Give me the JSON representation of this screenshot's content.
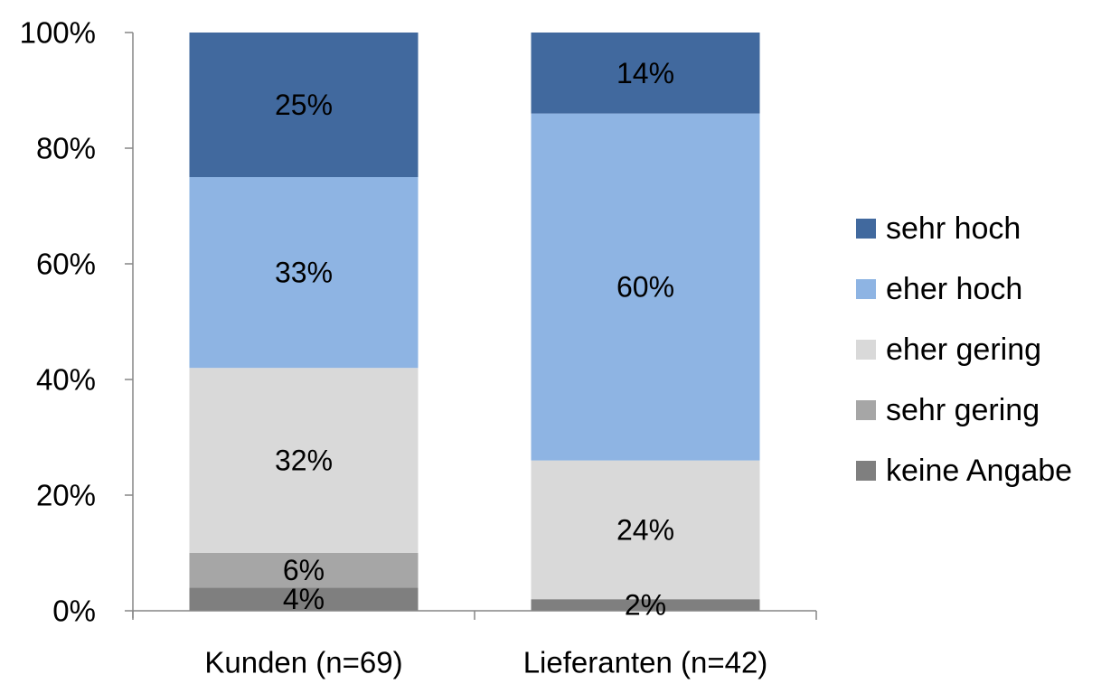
{
  "chart_data": {
    "type": "bar",
    "stacked": true,
    "categories": [
      "Kunden (n=69)",
      "Lieferanten (n=42)"
    ],
    "series": [
      {
        "name": "keine Angabe",
        "values": [
          4,
          2
        ],
        "labels": [
          "4%",
          "2%"
        ],
        "color": "#7f7f7f"
      },
      {
        "name": "sehr gering",
        "values": [
          6,
          0
        ],
        "labels": [
          "6%",
          ""
        ],
        "color": "#a6a6a6"
      },
      {
        "name": "eher gering",
        "values": [
          32,
          24
        ],
        "labels": [
          "32%",
          "24%"
        ],
        "color": "#d9d9d9"
      },
      {
        "name": "eher hoch",
        "values": [
          33,
          60
        ],
        "labels": [
          "33%",
          "60%"
        ],
        "color": "#8eb4e3"
      },
      {
        "name": "sehr hoch",
        "values": [
          25,
          14
        ],
        "labels": [
          "25%",
          "14%"
        ],
        "color": "#41699e"
      }
    ],
    "y_ticks": [
      {
        "value": 0,
        "label": "0%"
      },
      {
        "value": 20,
        "label": "20%"
      },
      {
        "value": 40,
        "label": "40%"
      },
      {
        "value": 60,
        "label": "60%"
      },
      {
        "value": 80,
        "label": "80%"
      },
      {
        "value": 100,
        "label": "100%"
      }
    ],
    "ylim": [
      0,
      100
    ],
    "legend_order": [
      "sehr hoch",
      "eher hoch",
      "eher gering",
      "sehr gering",
      "keine Angabe"
    ],
    "legend_position": "right",
    "grid": false,
    "title": "",
    "xlabel": "",
    "ylabel": ""
  }
}
